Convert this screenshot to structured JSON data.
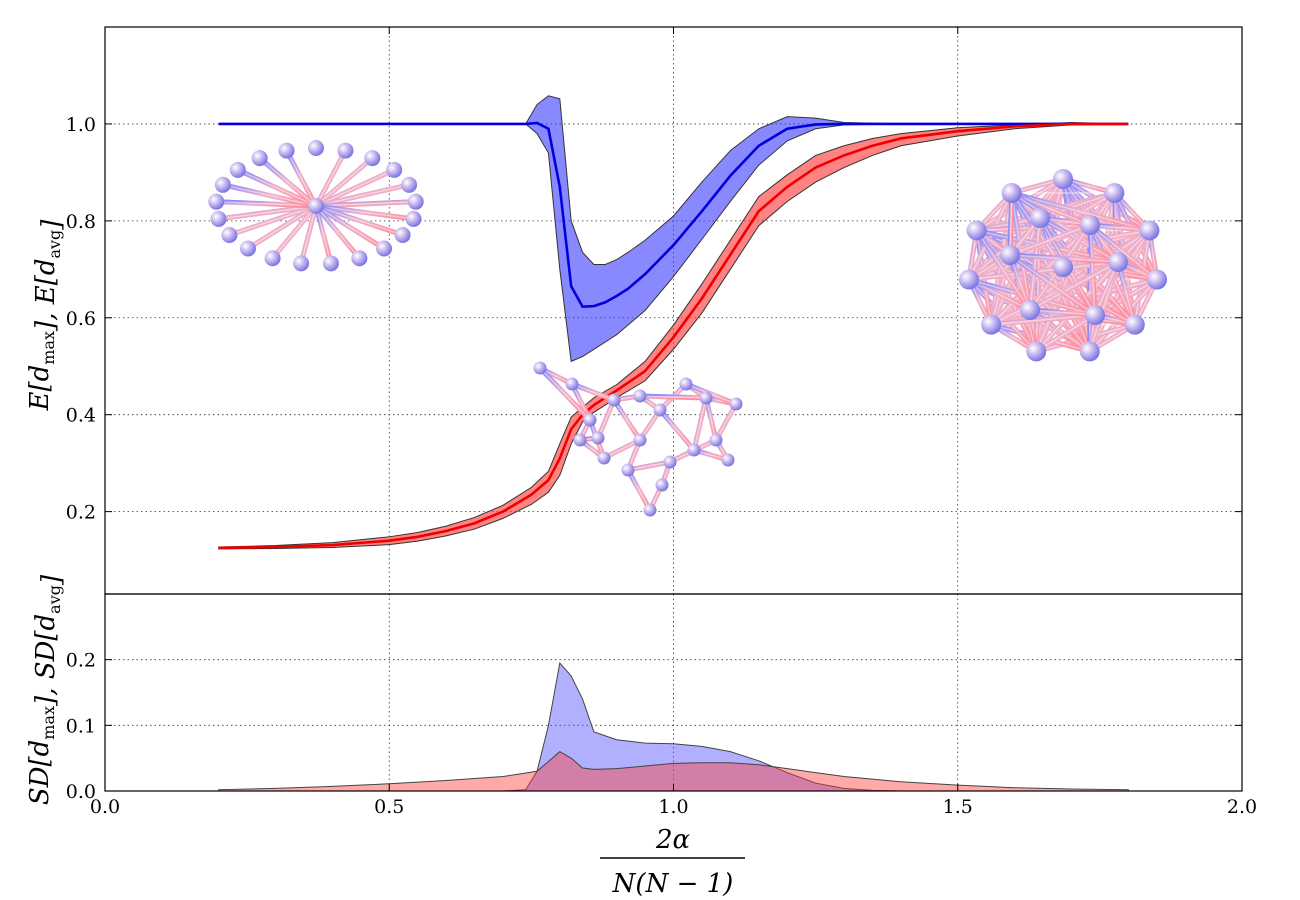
{
  "chart_data": [
    {
      "type": "line",
      "panel": "top",
      "xlim": [
        0.0,
        2.0
      ],
      "ylim": [
        0.03,
        1.2
      ],
      "yticks": [
        "0.2",
        "0.4",
        "0.6",
        "0.8",
        "1.0"
      ],
      "grid": true,
      "ylabel": {
        "main": "E[d",
        "sub1": "max",
        "mid": "], E[d",
        "sub2": "avg",
        "end": "]"
      },
      "series": [
        {
          "color": "#0000dd",
          "fill": "#3b3bff",
          "x": [
            0.2,
            0.3,
            0.4,
            0.5,
            0.6,
            0.7,
            0.74,
            0.76,
            0.78,
            0.8,
            0.82,
            0.84,
            0.86,
            0.88,
            0.9,
            0.92,
            0.95,
            1.0,
            1.05,
            1.1,
            1.15,
            1.2,
            1.25,
            1.3,
            1.4,
            1.5,
            1.6,
            1.7,
            1.8
          ],
          "values": [
            1.0,
            1.0,
            1.0,
            1.0,
            1.0,
            1.0,
            1.0,
            1.002,
            0.99,
            0.87,
            0.665,
            0.623,
            0.624,
            0.632,
            0.645,
            0.66,
            0.69,
            0.75,
            0.82,
            0.893,
            0.955,
            0.99,
            0.999,
            1.0,
            1.0,
            1.0,
            1.0,
            1.0,
            1.0
          ],
          "upper": [
            1.0,
            1.0,
            1.0,
            1.0,
            1.0,
            1.0,
            1.0,
            1.04,
            1.058,
            1.052,
            0.8,
            0.735,
            0.71,
            0.71,
            0.72,
            0.735,
            0.76,
            0.81,
            0.88,
            0.945,
            0.99,
            1.015,
            1.012,
            1.003,
            1.0,
            1.0,
            1.0,
            1.0,
            1.0
          ],
          "lower": [
            1.0,
            1.0,
            1.0,
            1.0,
            1.0,
            1.0,
            1.0,
            0.98,
            0.94,
            0.7,
            0.51,
            0.52,
            0.535,
            0.55,
            0.565,
            0.585,
            0.615,
            0.685,
            0.762,
            0.84,
            0.915,
            0.965,
            0.99,
            0.998,
            1.0,
            1.0,
            1.0,
            1.0,
            1.0
          ]
        },
        {
          "color": "#ee0000",
          "fill": "#ff3030",
          "x": [
            0.2,
            0.3,
            0.4,
            0.5,
            0.55,
            0.6,
            0.65,
            0.7,
            0.75,
            0.78,
            0.8,
            0.82,
            0.84,
            0.86,
            0.9,
            0.95,
            1.0,
            1.05,
            1.1,
            1.15,
            1.2,
            1.25,
            1.3,
            1.35,
            1.4,
            1.5,
            1.6,
            1.7,
            1.8
          ],
          "values": [
            0.125,
            0.127,
            0.131,
            0.14,
            0.148,
            0.16,
            0.176,
            0.2,
            0.235,
            0.265,
            0.31,
            0.37,
            0.4,
            0.42,
            0.45,
            0.49,
            0.56,
            0.64,
            0.73,
            0.82,
            0.87,
            0.91,
            0.935,
            0.955,
            0.97,
            0.985,
            0.995,
            1.0,
            1.0
          ],
          "upper": [
            0.127,
            0.13,
            0.136,
            0.148,
            0.157,
            0.17,
            0.188,
            0.213,
            0.25,
            0.283,
            0.34,
            0.395,
            0.415,
            0.435,
            0.462,
            0.51,
            0.585,
            0.67,
            0.76,
            0.85,
            0.895,
            0.935,
            0.955,
            0.97,
            0.98,
            0.992,
            0.998,
            1.003,
            1.0
          ],
          "lower": [
            0.123,
            0.124,
            0.126,
            0.132,
            0.139,
            0.15,
            0.164,
            0.186,
            0.215,
            0.24,
            0.275,
            0.34,
            0.385,
            0.405,
            0.435,
            0.47,
            0.535,
            0.61,
            0.7,
            0.79,
            0.84,
            0.88,
            0.91,
            0.935,
            0.955,
            0.975,
            0.99,
            0.998,
            1.0
          ]
        }
      ]
    },
    {
      "type": "area",
      "panel": "bottom",
      "xlim": [
        0.0,
        2.0
      ],
      "ylim": [
        0.0,
        0.3
      ],
      "xticks": [
        "0.0",
        "0.5",
        "1.0",
        "1.5",
        "2.0"
      ],
      "yticks": [
        "0.0",
        "0.1",
        "0.2"
      ],
      "grid": true,
      "ylabel": {
        "main": "SD[d",
        "sub1": "max",
        "mid": "], SD[d",
        "sub2": "avg",
        "end": "]"
      },
      "xlabel": {
        "numerator": "2α",
        "denominator": "N(N − 1)"
      },
      "series": [
        {
          "color": "#5050ff",
          "x": [
            0.2,
            0.7,
            0.74,
            0.76,
            0.78,
            0.8,
            0.82,
            0.84,
            0.86,
            0.9,
            0.95,
            1.0,
            1.05,
            1.1,
            1.15,
            1.2,
            1.25,
            1.3,
            1.35,
            1.4,
            1.8
          ],
          "values": [
            0.0,
            0.0,
            0.002,
            0.03,
            0.1,
            0.195,
            0.175,
            0.14,
            0.09,
            0.078,
            0.073,
            0.072,
            0.068,
            0.06,
            0.046,
            0.028,
            0.012,
            0.004,
            0.001,
            0.0,
            0.0
          ]
        },
        {
          "color": "#ff4040",
          "x": [
            0.2,
            0.3,
            0.4,
            0.5,
            0.6,
            0.7,
            0.76,
            0.8,
            0.82,
            0.84,
            0.86,
            0.9,
            0.95,
            1.0,
            1.05,
            1.1,
            1.15,
            1.2,
            1.25,
            1.3,
            1.4,
            1.5,
            1.6,
            1.7,
            1.8
          ],
          "values": [
            0.002,
            0.004,
            0.007,
            0.011,
            0.016,
            0.022,
            0.03,
            0.06,
            0.05,
            0.035,
            0.033,
            0.034,
            0.038,
            0.042,
            0.043,
            0.043,
            0.04,
            0.034,
            0.028,
            0.022,
            0.014,
            0.009,
            0.005,
            0.003,
            0.002
          ]
        }
      ]
    }
  ],
  "insets": [
    {
      "name": "star-graph-image"
    },
    {
      "name": "random-graph-image"
    },
    {
      "name": "complete-graph-image"
    }
  ]
}
